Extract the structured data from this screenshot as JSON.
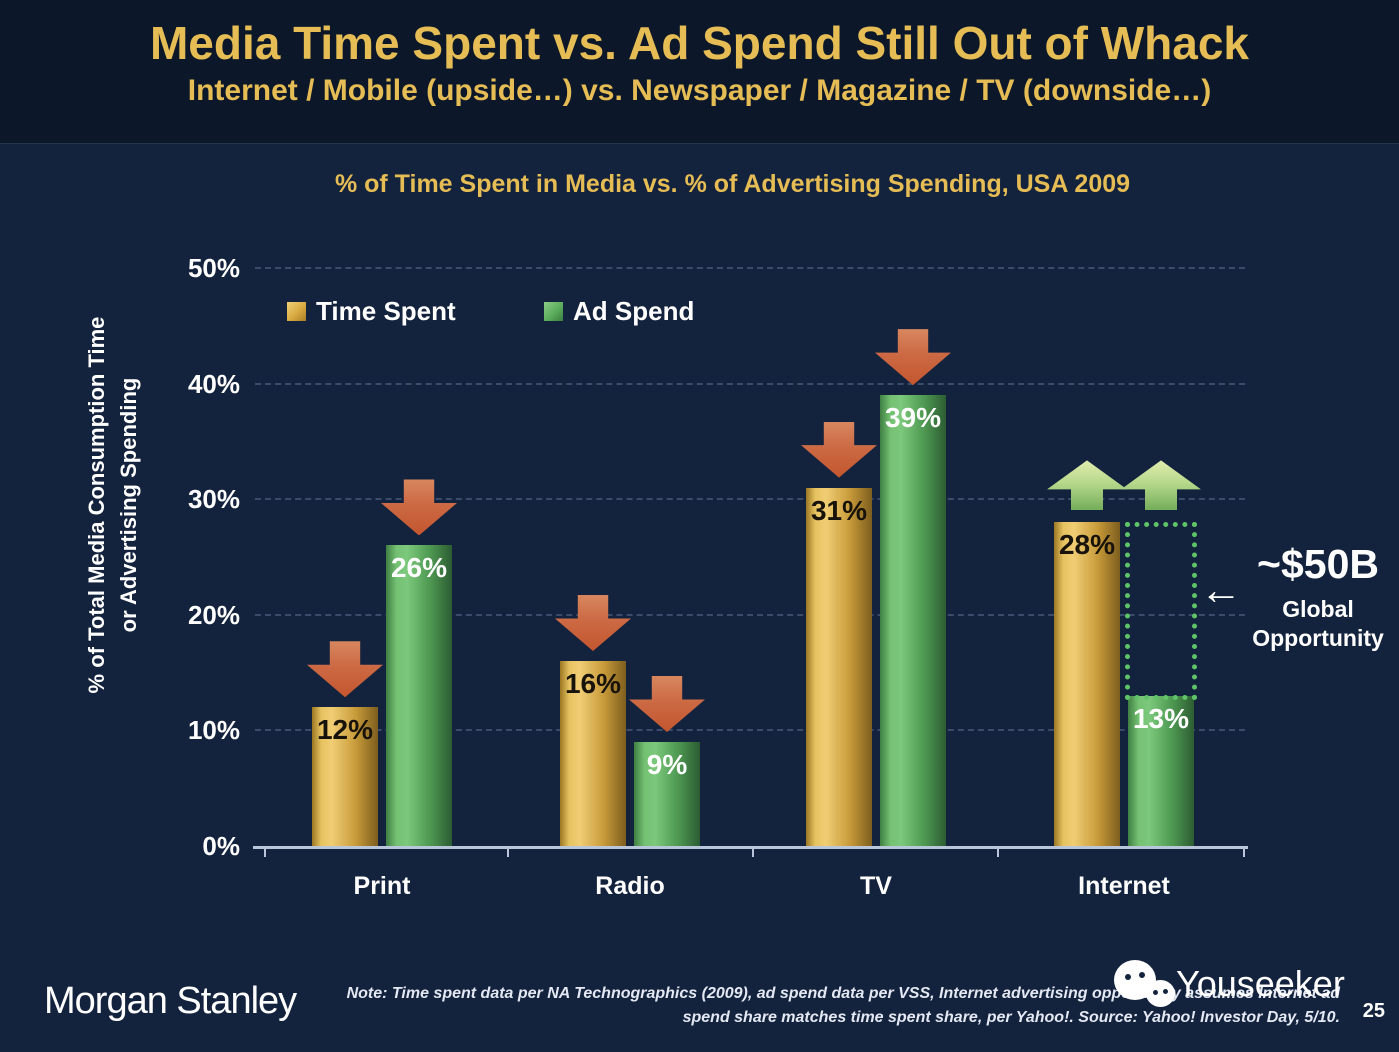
{
  "header": {
    "title": "Media Time Spent vs. Ad Spend Still Out of Whack",
    "subtitle": "Internet / Mobile (upside…) vs. Newspaper / Magazine / TV (downside…)"
  },
  "chart_data": {
    "type": "bar",
    "title": "% of Time Spent in Media vs. % of Advertising Spending, USA 2009",
    "categories": [
      "Print",
      "Radio",
      "TV",
      "Internet"
    ],
    "series": [
      {
        "name": "Time Spent",
        "color": "#D9A940",
        "values": [
          12,
          16,
          31,
          28
        ],
        "labels": [
          "12%",
          "16%",
          "31%",
          "28%"
        ]
      },
      {
        "name": "Ad Spend",
        "color": "#5BAD5B",
        "values": [
          26,
          9,
          39,
          13
        ],
        "labels": [
          "26%",
          "9%",
          "39%",
          "13%"
        ]
      }
    ],
    "ylabel_lines": [
      "% of Total Media Consumption Time",
      "or Advertising Spending"
    ],
    "yticks": [
      "0%",
      "10%",
      "20%",
      "30%",
      "40%",
      "50%"
    ],
    "ylim": [
      0,
      50
    ],
    "grid": "horizontal-dashed",
    "legend_position": "top-left-inside",
    "trend_arrows": [
      "down",
      "down",
      "down",
      "up"
    ],
    "annotation": {
      "value": "~$50B",
      "label_lines": [
        "Global",
        "Opportunity"
      ],
      "points_to_category": "Internet",
      "gap_between": [
        "Time Spent",
        "Ad Spend"
      ]
    }
  },
  "footer": {
    "logo": "Morgan Stanley",
    "note_line1": "Note: Time spent data per NA Technographics (2009), ad spend data per VSS, Internet advertising opportunity assumes Internet ad",
    "note_line2": "spend share matches time spent share, per Yahoo!. Source: Yahoo! Investor Day, 5/10.",
    "watermark": "Youseeker",
    "page_number": "25"
  },
  "colors": {
    "background": "#14233D",
    "header_background": "#0C1829",
    "title_gold": "#E6BC55",
    "bar_gold": "#D9A940",
    "bar_green": "#5BAD5B",
    "arrow_down_red": "#C3562F",
    "arrow_up_green": "#9CCC7A",
    "gridline": "#3B4C6B",
    "axis": "#B9C5D9",
    "text_white": "#FFFFFF"
  }
}
